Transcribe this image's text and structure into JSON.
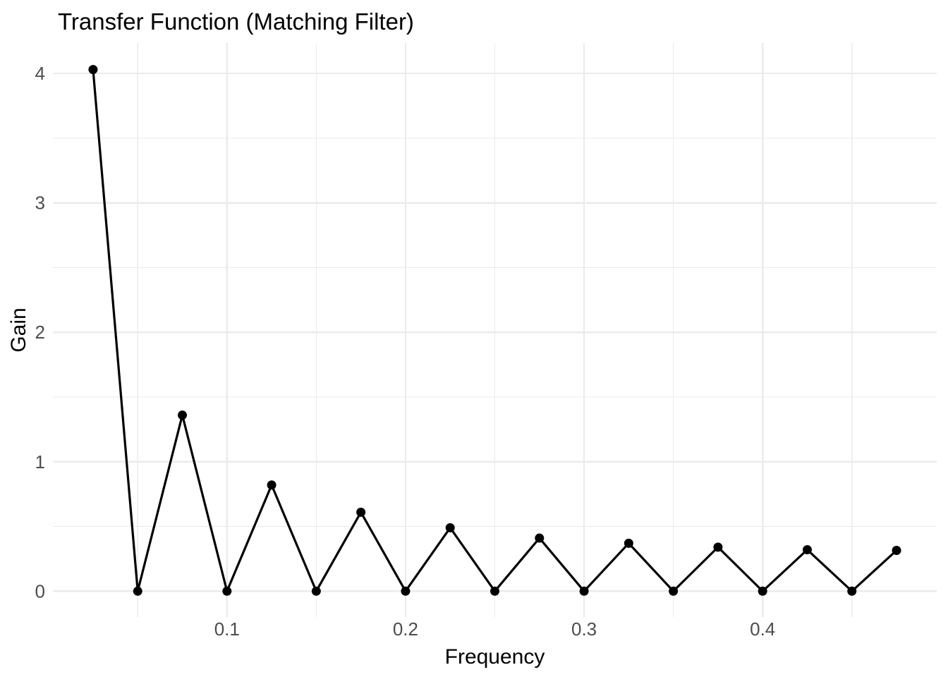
{
  "chart_data": {
    "type": "line",
    "title": "Transfer Function (Matching Filter)",
    "xlabel": "Frequency",
    "ylabel": "Gain",
    "x": [
      0.025,
      0.05,
      0.075,
      0.1,
      0.125,
      0.15,
      0.175,
      0.2,
      0.225,
      0.25,
      0.275,
      0.3,
      0.325,
      0.35,
      0.375,
      0.4,
      0.425,
      0.45,
      0.475
    ],
    "y": [
      4.03,
      0,
      1.36,
      0,
      0.82,
      0,
      0.61,
      0,
      0.49,
      0,
      0.41,
      0,
      0.37,
      0,
      0.34,
      0,
      0.32,
      0,
      0.315
    ],
    "xlim": [
      0.0025,
      0.4975
    ],
    "ylim": [
      -0.2,
      4.235
    ],
    "x_ticks": {
      "major": [
        0.1,
        0.2,
        0.3,
        0.4
      ],
      "labels": [
        "0.1",
        "0.2",
        "0.3",
        "0.4"
      ],
      "minor": [
        0.05,
        0.15,
        0.25,
        0.35,
        0.45
      ]
    },
    "y_ticks": {
      "major": [
        0,
        1,
        2,
        3,
        4
      ],
      "labels": [
        "0",
        "1",
        "2",
        "3",
        "4"
      ],
      "minor": [
        0.5,
        1.5,
        2.5,
        3.5
      ]
    },
    "grid": "on",
    "legend": "none",
    "style": {
      "background": "#FFFFFF",
      "grid_color": "#EBEBEB",
      "line_color": "#000000",
      "point_color": "#000000",
      "tick_label_color": "#4D4D4D",
      "title_color": "#000000",
      "axis_title_color": "#000000"
    }
  }
}
